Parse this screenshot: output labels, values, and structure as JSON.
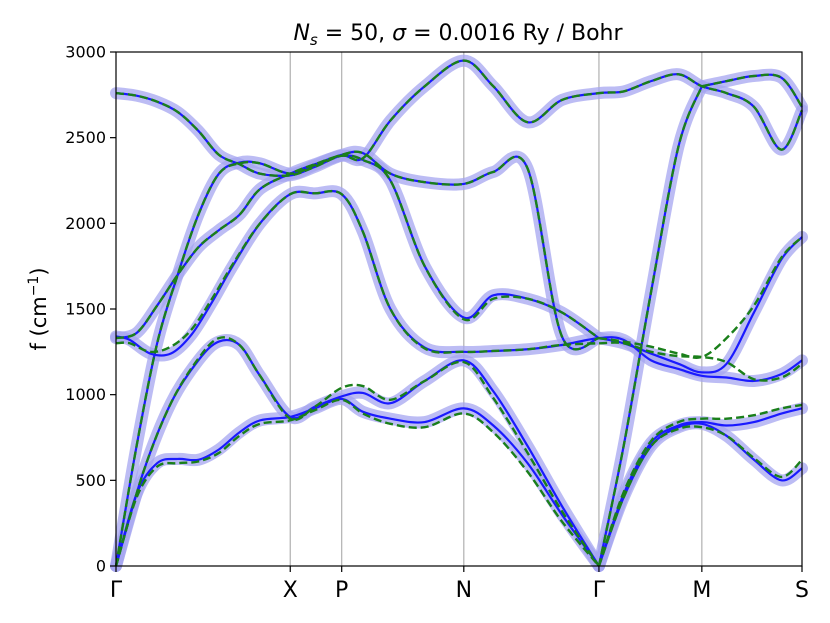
{
  "chart_data": {
    "type": "line",
    "title": "N_s = 50, σ = 0.0016 Ry / Bohr",
    "title_parts": {
      "n": "N",
      "n_sub": "s",
      "eq1": " = 50, ",
      "sigma": "σ",
      "eq2": " = 0.0016 Ry / Bohr"
    },
    "ylabel": "f (cm⁻¹)",
    "ylabel_parts": {
      "base": "f (cm",
      "sup": "−1",
      "close": ")"
    },
    "xlabel": "",
    "ylim": [
      0,
      3000
    ],
    "yticks": [
      0,
      500,
      1000,
      1500,
      2000,
      2500,
      3000
    ],
    "xlim": [
      0,
      1
    ],
    "high_symmetry_points": [
      {
        "label": "Γ",
        "x": 0.0
      },
      {
        "label": "X",
        "x": 0.254
      },
      {
        "label": "P",
        "x": 0.329
      },
      {
        "label": "N",
        "x": 0.507
      },
      {
        "label": "Γ",
        "x": 0.704
      },
      {
        "label": "M",
        "x": 0.854
      },
      {
        "label": "S",
        "x": 1.0
      }
    ],
    "grid": "vertical lines at high-symmetry points",
    "colors": {
      "reference": "#1a1aff",
      "band_fill": "#a5a5f0",
      "prediction": "#1a7f1a",
      "grid": "#b0b0b0"
    },
    "series": [
      {
        "style": "solid",
        "band_width": 35,
        "branches": [
          {
            "x": [
              0,
              0.03,
              0.06,
              0.09,
              0.12,
              0.15,
              0.18,
              0.21,
              0.254,
              0.29,
              0.329,
              0.36,
              0.4,
              0.45,
              0.507,
              0.55,
              0.6,
              0.65,
              0.704
            ],
            "y": [
              0,
              420,
              600,
              625,
              620,
              680,
              780,
              850,
              870,
              920,
              975,
              900,
              860,
              840,
              920,
              820,
              600,
              300,
              0
            ]
          },
          {
            "x": [
              0.704,
              0.74,
              0.78,
              0.82,
              0.854,
              0.89,
              0.93,
              0.97,
              1.0
            ],
            "y": [
              0,
              400,
              700,
              810,
              830,
              760,
              620,
              500,
              570
            ]
          },
          {
            "x": [
              0.704,
              0.74,
              0.78,
              0.82,
              0.854,
              0.89,
              0.93,
              0.97,
              1.0
            ],
            "y": [
              0,
              420,
              720,
              820,
              840,
              820,
              840,
              890,
              920
            ]
          },
          {
            "x": [
              0,
              0.04,
              0.08,
              0.12,
              0.15,
              0.18,
              0.21,
              0.254,
              0.29,
              0.329,
              0.36,
              0.4,
              0.45,
              0.507,
              0.55,
              0.6,
              0.65,
              0.704
            ],
            "y": [
              0,
              550,
              950,
              1200,
              1310,
              1290,
              1110,
              870,
              930,
              990,
              1010,
              950,
              1080,
              1200,
              1020,
              700,
              350,
              0
            ]
          },
          {
            "x": [
              0,
              0.02,
              0.05,
              0.08,
              0.11,
              0.14,
              0.17,
              0.21,
              0.254,
              0.29,
              0.329,
              0.36,
              0.4,
              0.45,
              0.507,
              0.55,
              0.6,
              0.65,
              0.704,
              0.74,
              0.78,
              0.82,
              0.854,
              0.89,
              0.93,
              0.97,
              1.0
            ],
            "y": [
              1340,
              1320,
              1240,
              1240,
              1350,
              1540,
              1750,
              2000,
              2170,
              2175,
              2170,
              1950,
              1500,
              1275,
              1250,
              1255,
              1265,
              1290,
              1330,
              1320,
              1200,
              1150,
              1110,
              1100,
              1080,
              1120,
              1200
            ]
          },
          {
            "x": [
              0,
              0.03,
              0.06,
              0.09,
              0.12,
              0.15,
              0.18,
              0.21,
              0.254,
              0.29,
              0.329,
              0.36,
              0.4,
              0.45,
              0.507,
              0.55,
              0.6,
              0.65,
              0.704
            ],
            "y": [
              1330,
              1360,
              1520,
              1700,
              1860,
              1960,
              2050,
              2200,
              2290,
              2345,
              2395,
              2370,
              2250,
              1750,
              1450,
              1580,
              1560,
              1480,
              1330
            ]
          },
          {
            "x": [
              0.704,
              0.74,
              0.78,
              0.82,
              0.854,
              0.89,
              0.93,
              0.97,
              1.0
            ],
            "y": [
              1330,
              1300,
              1240,
              1180,
              1130,
              1180,
              1480,
              1790,
              1920
            ]
          },
          {
            "x": [
              0,
              0.03,
              0.06,
              0.09,
              0.12,
              0.15,
              0.18,
              0.21,
              0.254,
              0.29,
              0.329,
              0.36,
              0.4,
              0.45,
              0.507,
              0.55,
              0.6,
              0.65,
              0.704
            ],
            "y": [
              0,
              700,
              1300,
              1700,
              2050,
              2290,
              2355,
              2350,
              2290,
              2340,
              2400,
              2410,
              2290,
              2240,
              2230,
              2300,
              2320,
              1340,
              1330
            ]
          },
          {
            "x": [
              0.704,
              0.74,
              0.78,
              0.82,
              0.854
            ],
            "y": [
              0,
              700,
              1600,
              2450,
              2800
            ]
          },
          {
            "x": [
              0,
              0.03,
              0.06,
              0.09,
              0.12,
              0.15,
              0.18,
              0.21,
              0.254,
              0.29,
              0.329,
              0.36,
              0.4,
              0.45,
              0.507,
              0.55,
              0.6,
              0.65,
              0.704,
              0.74,
              0.78,
              0.82,
              0.854,
              0.89,
              0.93,
              0.97,
              1.0
            ],
            "y": [
              2760,
              2745,
              2710,
              2650,
              2540,
              2400,
              2345,
              2290,
              2280,
              2330,
              2395,
              2380,
              2600,
              2800,
              2950,
              2800,
              2590,
              2720,
              2760,
              2770,
              2830,
              2870,
              2800,
              2760,
              2680,
              2430,
              2660
            ]
          },
          {
            "x": [
              0.854,
              0.89,
              0.93,
              0.97,
              1.0
            ],
            "y": [
              2800,
              2830,
              2860,
              2850,
              2680
            ]
          }
        ]
      },
      {
        "style": "dashed",
        "band_width": 0,
        "branches": [
          {
            "x": [
              0,
              0.03,
              0.06,
              0.09,
              0.12,
              0.15,
              0.18,
              0.21,
              0.254,
              0.29,
              0.329,
              0.36,
              0.4,
              0.45,
              0.507,
              0.55,
              0.6,
              0.65,
              0.704
            ],
            "y": [
              0,
              400,
              580,
              600,
              610,
              660,
              760,
              830,
              850,
              910,
              970,
              890,
              830,
              810,
              890,
              780,
              550,
              260,
              0
            ]
          },
          {
            "x": [
              0.704,
              0.74,
              0.78,
              0.82,
              0.854,
              0.89,
              0.93,
              0.97,
              1.0
            ],
            "y": [
              0,
              400,
              700,
              800,
              810,
              760,
              630,
              520,
              620
            ]
          },
          {
            "x": [
              0.704,
              0.74,
              0.78,
              0.82,
              0.854,
              0.89,
              0.93,
              0.97,
              1.0
            ],
            "y": [
              0,
              430,
              730,
              840,
              860,
              860,
              880,
              920,
              940
            ]
          },
          {
            "x": [
              0,
              0.04,
              0.08,
              0.12,
              0.15,
              0.18,
              0.21,
              0.254,
              0.29,
              0.329,
              0.36,
              0.4,
              0.45,
              0.507,
              0.55,
              0.6,
              0.65,
              0.704
            ],
            "y": [
              0,
              550,
              950,
              1210,
              1330,
              1290,
              1110,
              860,
              930,
              1040,
              1050,
              970,
              1080,
              1190,
              980,
              660,
              320,
              0
            ]
          },
          {
            "x": [
              0,
              0.02,
              0.05,
              0.08,
              0.11,
              0.14,
              0.17,
              0.21,
              0.254,
              0.29,
              0.329,
              0.36,
              0.4,
              0.45,
              0.507,
              0.55,
              0.6,
              0.65,
              0.704,
              0.74,
              0.78,
              0.82,
              0.854,
              0.89,
              0.93,
              0.97,
              1.0
            ],
            "y": [
              1300,
              1300,
              1250,
              1280,
              1380,
              1560,
              1760,
              2000,
              2170,
              2175,
              2170,
              1950,
              1500,
              1270,
              1250,
              1255,
              1265,
              1290,
              1300,
              1300,
              1250,
              1225,
              1220,
              1190,
              1090,
              1100,
              1180
            ]
          },
          {
            "x": [
              0,
              0.03,
              0.06,
              0.09,
              0.12,
              0.15,
              0.18,
              0.21,
              0.254,
              0.29,
              0.329,
              0.36,
              0.4,
              0.45,
              0.507,
              0.55,
              0.6,
              0.65,
              0.704
            ],
            "y": [
              1330,
              1360,
              1520,
              1700,
              1860,
              1960,
              2050,
              2200,
              2290,
              2345,
              2395,
              2370,
              2250,
              1750,
              1440,
              1560,
              1560,
              1480,
              1330
            ]
          },
          {
            "x": [
              0.704,
              0.74,
              0.78,
              0.82,
              0.854,
              0.89,
              0.93,
              0.97,
              1.0
            ],
            "y": [
              1330,
              1310,
              1280,
              1240,
              1220,
              1330,
              1520,
              1800,
              1920
            ]
          },
          {
            "x": [
              0,
              0.03,
              0.06,
              0.09,
              0.12,
              0.15,
              0.18,
              0.21,
              0.254,
              0.29,
              0.329,
              0.36,
              0.4,
              0.45,
              0.507,
              0.55,
              0.6,
              0.65,
              0.704
            ],
            "y": [
              0,
              700,
              1300,
              1700,
              2050,
              2290,
              2350,
              2350,
              2290,
              2340,
              2400,
              2410,
              2290,
              2240,
              2230,
              2300,
              2320,
              1340,
              1330
            ]
          },
          {
            "x": [
              0.704,
              0.74,
              0.78,
              0.82,
              0.854
            ],
            "y": [
              0,
              700,
              1600,
              2450,
              2800
            ]
          },
          {
            "x": [
              0,
              0.03,
              0.06,
              0.09,
              0.12,
              0.15,
              0.18,
              0.21,
              0.254,
              0.29,
              0.329,
              0.36,
              0.4,
              0.45,
              0.507,
              0.55,
              0.6,
              0.65,
              0.704,
              0.74,
              0.78,
              0.82,
              0.854,
              0.89,
              0.93,
              0.97,
              1.0
            ],
            "y": [
              2760,
              2745,
              2710,
              2650,
              2540,
              2400,
              2345,
              2290,
              2280,
              2330,
              2395,
              2380,
              2600,
              2800,
              2950,
              2800,
              2590,
              2720,
              2760,
              2770,
              2830,
              2870,
              2800,
              2760,
              2680,
              2430,
              2660
            ]
          },
          {
            "x": [
              0.854,
              0.89,
              0.93,
              0.97,
              1.0
            ],
            "y": [
              2800,
              2830,
              2860,
              2850,
              2680
            ]
          }
        ]
      }
    ]
  }
}
